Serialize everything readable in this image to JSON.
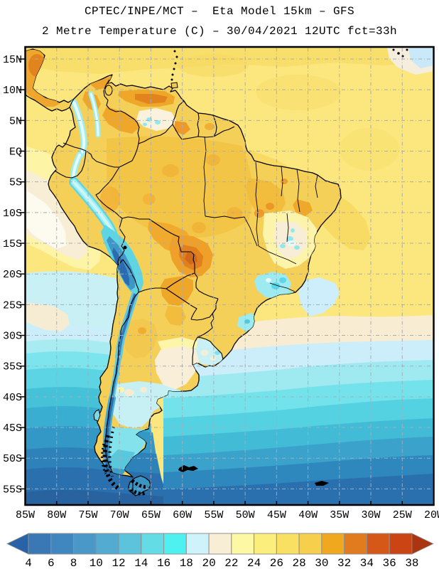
{
  "header": {
    "title_line1": "CPTEC/INPE/MCT –  Eta Model 15km – GFS",
    "title_line2": "2 Metre Temperature (C) – 30/04/2021 12UTC fct=33h"
  },
  "map": {
    "lat_labels": [
      "15N",
      "10N",
      "5N",
      "EQ",
      "5S",
      "10S",
      "15S",
      "20S",
      "25S",
      "30S",
      "35S",
      "40S",
      "45S",
      "50S",
      "55S"
    ],
    "lon_labels": [
      "85W",
      "80W",
      "75W",
      "70W",
      "65W",
      "60W",
      "55W",
      "50W",
      "45W",
      "40W",
      "35W",
      "30W",
      "25W",
      "20W"
    ],
    "grid_color": "#a9abb5",
    "frame_color": "#000000"
  },
  "colorbar": {
    "unit": "C",
    "labels": [
      "4",
      "6",
      "8",
      "10",
      "12",
      "14",
      "16",
      "18",
      "20",
      "22",
      "24",
      "26",
      "28",
      "30",
      "32",
      "34",
      "36",
      "38"
    ],
    "cell_colors": [
      "#3a77b5",
      "#4187bf",
      "#4a98c8",
      "#53abd1",
      "#5dc3dc",
      "#63dce6",
      "#4ff0f0",
      "#cff3fb",
      "#f8eed6",
      "#fdf8a3",
      "#fcee7c",
      "#f9e063",
      "#f6d04d",
      "#f0a81f",
      "#e27a1e",
      "#d65818",
      "#ca4414"
    ],
    "left_arrow_color": "#2a62a8",
    "right_arrow_color": "#aa3510",
    "cell_border_color": "#909090"
  },
  "map_reading": {
    "amazon_basin_c": "26-30",
    "pantanal_hotspot_c": "30-34",
    "ne_brazil_interior_c": "18-24",
    "andes_cordillera_c": "4-14",
    "patagonia_c": "8-16",
    "southern_ocean_c": "4-10",
    "tropical_atlantic_c": "24-28"
  }
}
